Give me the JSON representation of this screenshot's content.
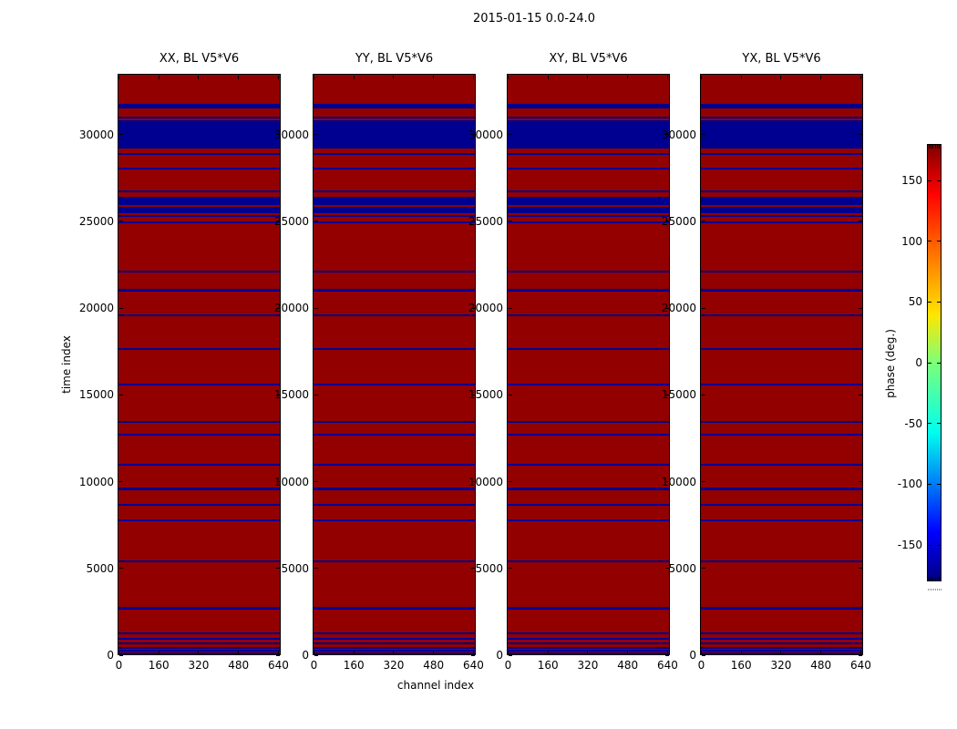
{
  "figure": {
    "title": "2015-01-15 0.0-24.0"
  },
  "chart_data": {
    "type": "heatmap",
    "title": "2015-01-15 0.0-24.0",
    "panels": [
      {
        "title": "XX, BL V5*V6"
      },
      {
        "title": "YY, BL V5*V6"
      },
      {
        "title": "XY, BL V5*V6"
      },
      {
        "title": "YX, BL V5*V6"
      }
    ],
    "xlabel": "channel index",
    "ylabel": "time index",
    "x_ticks": [
      0,
      160,
      320,
      480,
      640
    ],
    "y_ticks": [
      0,
      5000,
      10000,
      15000,
      20000,
      25000,
      30000
    ],
    "xlim": [
      0,
      644
    ],
    "ylim": [
      0,
      33500
    ],
    "grid": false,
    "base_phase_deg": 180,
    "stripe_phase_deg": -180,
    "colors": {
      "base": "#930000",
      "stripe": "#000090",
      "frame": "#000000",
      "background": "#ffffff"
    },
    "flagged_time_ranges": [
      [
        0,
        110
      ],
      [
        160,
        270
      ],
      [
        330,
        440
      ],
      [
        590,
        700
      ],
      [
        860,
        970
      ],
      [
        1160,
        1270
      ],
      [
        2610,
        2720
      ],
      [
        5320,
        5430
      ],
      [
        7680,
        7790
      ],
      [
        8600,
        8710
      ],
      [
        9520,
        9630
      ],
      [
        10920,
        11030
      ],
      [
        12640,
        12750
      ],
      [
        13410,
        13520
      ],
      [
        15560,
        15670
      ],
      [
        17610,
        17720
      ],
      [
        19550,
        19660
      ],
      [
        21000,
        21180
      ],
      [
        22110,
        22220
      ],
      [
        24940,
        25050
      ],
      [
        25340,
        25450
      ],
      [
        25540,
        25890
      ],
      [
        26030,
        26470
      ],
      [
        26730,
        26840
      ],
      [
        28080,
        28190
      ],
      [
        28890,
        29000
      ],
      [
        29260,
        30890
      ],
      [
        31000,
        31110
      ],
      [
        31600,
        31870
      ]
    ],
    "colorbar": {
      "label": "phase (deg.)",
      "ticks": [
        150,
        100,
        50,
        0,
        -50,
        -100,
        -150
      ],
      "range": [
        -180,
        180
      ],
      "legend_position": "right",
      "gradient": [
        [
          "0",
          "#000080"
        ],
        [
          "0.11",
          "#0000ff"
        ],
        [
          "0.34",
          "#00ffee"
        ],
        [
          "0.5",
          "#7dff79"
        ],
        [
          "0.61",
          "#ffe600"
        ],
        [
          "0.89",
          "#ff0000"
        ],
        [
          "1",
          "#800000"
        ]
      ]
    }
  }
}
